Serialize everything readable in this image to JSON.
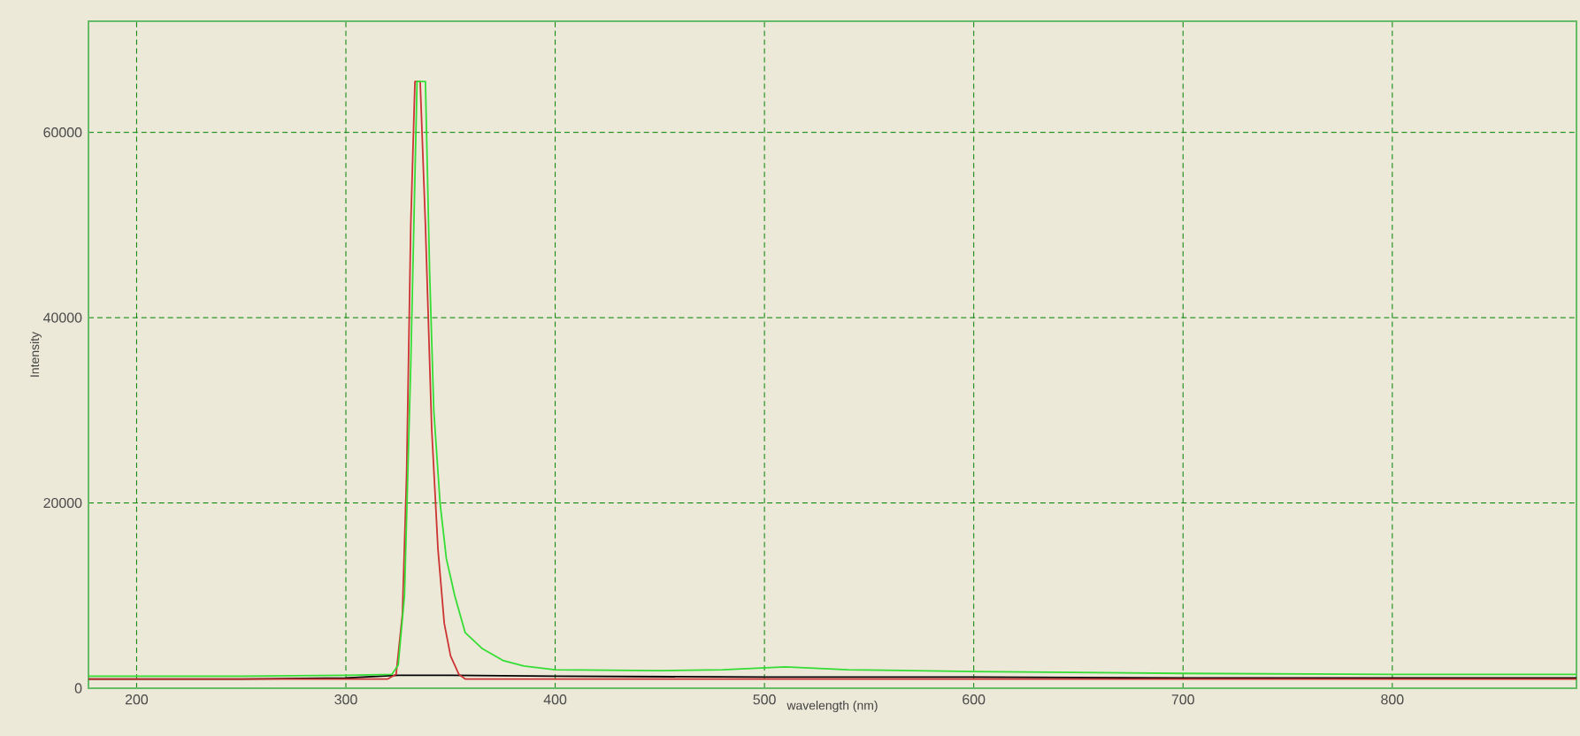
{
  "chart_data": {
    "type": "line",
    "xlabel": "wavelength (nm)",
    "ylabel": "Intensity",
    "xlim": [
      177,
      888
    ],
    "ylim": [
      0,
      72000
    ],
    "xticks": [
      200,
      300,
      400,
      500,
      600,
      700,
      800
    ],
    "yticks": [
      0,
      20000,
      40000,
      60000
    ],
    "grid": true,
    "marker": "none",
    "line_style": "solid",
    "series": [
      {
        "color": "#000000",
        "x": [
          177,
          250,
          300,
          325,
          350,
          400,
          500,
          600,
          700,
          800,
          888
        ],
        "values": [
          1000,
          1000,
          1100,
          1400,
          1400,
          1300,
          1200,
          1200,
          1100,
          1100,
          1100
        ]
      },
      {
        "color": "#cc3333",
        "x": [
          177,
          200,
          250,
          300,
          320,
          324,
          327,
          329,
          331,
          333,
          335.5,
          338,
          341,
          344,
          347,
          350,
          354,
          357,
          400,
          500,
          600,
          700,
          800,
          888
        ],
        "values": [
          1000,
          1000,
          1000,
          1000,
          1000,
          1500,
          8000,
          23000,
          50000,
          65500,
          65500,
          50000,
          28000,
          15000,
          7000,
          3500,
          1500,
          1000,
          1000,
          1000,
          1000,
          1000,
          1000,
          1000
        ]
      },
      {
        "color": "#33dd33",
        "x": [
          177,
          250,
          300,
          322,
          325,
          328,
          331,
          334,
          338,
          340,
          342,
          345,
          348,
          352,
          357,
          365,
          375,
          385,
          400,
          450,
          480,
          510,
          540,
          600,
          700,
          800,
          888
        ],
        "values": [
          1300,
          1300,
          1400,
          1500,
          2500,
          10000,
          35000,
          65500,
          65500,
          45000,
          30000,
          20000,
          14000,
          10000,
          6000,
          4300,
          3000,
          2400,
          2000,
          1900,
          2000,
          2300,
          2000,
          1800,
          1600,
          1500,
          1500
        ]
      }
    ]
  }
}
